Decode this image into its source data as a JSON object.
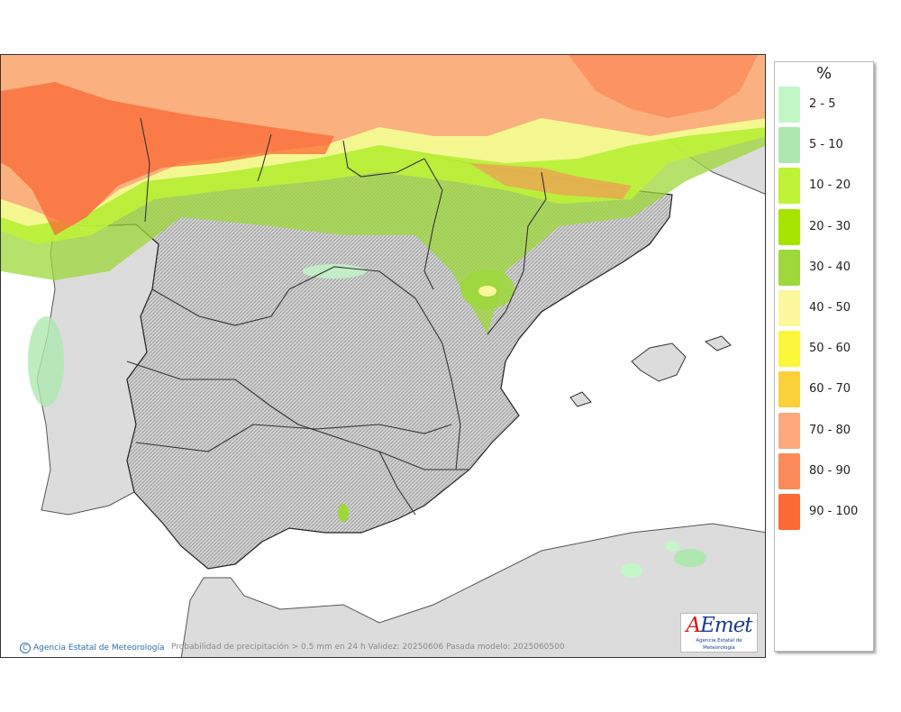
{
  "map": {
    "caption": "Probabilidad de precipitación > 0.5 mm en 24 h Validez: 20250606 Pasada modelo: 2025060500",
    "agency": "Agencia Estatal de Meteorología",
    "copyright_symbol": "C",
    "logo_brand_a": "A",
    "logo_brand_rest": "Emet",
    "logo_sub": "Agencia Estatal de Meteorología"
  },
  "legend": {
    "title": "%",
    "items": [
      {
        "label": "2 - 5",
        "color": "#c3f7c8"
      },
      {
        "label": "5 - 10",
        "color": "#aee8b0"
      },
      {
        "label": "10 - 20",
        "color": "#bef336"
      },
      {
        "label": "20 - 30",
        "color": "#a6e400"
      },
      {
        "label": "30 - 40",
        "color": "#9ed83b"
      },
      {
        "label": "40 - 50",
        "color": "#fbf79a"
      },
      {
        "label": "50 - 60",
        "color": "#fbf73a"
      },
      {
        "label": "60 - 70",
        "color": "#fbd13a"
      },
      {
        "label": "70 - 80",
        "color": "#fba87d"
      },
      {
        "label": "80 - 90",
        "color": "#fb8a5a"
      },
      {
        "label": "90 - 100",
        "color": "#fb6a35"
      }
    ]
  },
  "colors": {
    "sea": "#ffffff",
    "land": "#dcdcdc",
    "border": "#333333"
  }
}
